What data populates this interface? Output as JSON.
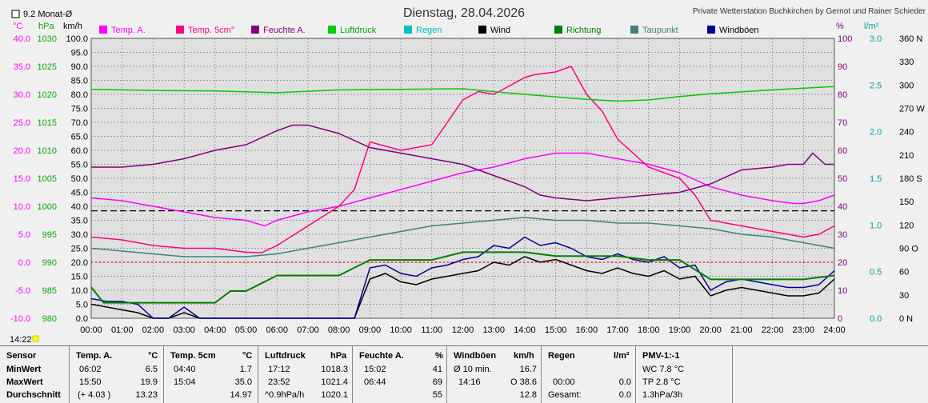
{
  "header": {
    "date": "Dienstag, 28.04.2026",
    "station": "Private Wetterstation Buchkirchen by Gernot und Rainer Schieder",
    "month_avg_label": "9.2 Monat-Ø",
    "time_marker": "14:22"
  },
  "colors": {
    "temp_a": "#ff00ff",
    "temp_5cm": "#ff0080",
    "feuchte": "#800080",
    "luftdruck": "#00cc00",
    "regen": "#00c0c0",
    "wind": "#000000",
    "richtung": "#008000",
    "taupunkt": "#408080",
    "windboeen": "#000099"
  },
  "chart_data": {
    "type": "line",
    "x_ticks": [
      "00:00",
      "01:00",
      "02:00",
      "03:00",
      "04:00",
      "05:00",
      "06:00",
      "07:00",
      "08:00",
      "09:00",
      "10:00",
      "11:00",
      "12:00",
      "13:00",
      "14:00",
      "15:00",
      "16:00",
      "17:00",
      "18:00",
      "19:00",
      "20:00",
      "21:00",
      "22:00",
      "23:00",
      "24:00"
    ],
    "axes": {
      "temp": {
        "unit": "°C",
        "ticks": [
          "40.0",
          "35.0",
          "30.0",
          "25.0",
          "20.0",
          "15.0",
          "10.0",
          "5.0",
          "0.0",
          "-5.0",
          "-10.0"
        ],
        "range": [
          -10,
          40
        ]
      },
      "pressure": {
        "unit": "hPa",
        "ticks": [
          "1030",
          "1025",
          "1020",
          "1015",
          "1010",
          "1005",
          "1000",
          "995",
          "990",
          "985",
          "980"
        ],
        "range": [
          980,
          1030
        ]
      },
      "wind": {
        "unit": "km/h",
        "ticks": [
          "100.0",
          "95.0",
          "90.0",
          "85.0",
          "80.0",
          "75.0",
          "70.0",
          "65.0",
          "60.0",
          "55.0",
          "50.0",
          "45.0",
          "40.0",
          "35.0",
          "30.0",
          "25.0",
          "20.0",
          "15.0",
          "10.0",
          "5.0",
          "0.0"
        ],
        "range": [
          0,
          100
        ]
      },
      "humidity": {
        "unit": "%",
        "ticks": [
          "100",
          "90",
          "80",
          "70",
          "60",
          "50",
          "40",
          "30",
          "20",
          "10",
          "0"
        ],
        "range": [
          0,
          100
        ]
      },
      "rain": {
        "unit": "l/m²",
        "ticks": [
          "3.0",
          "2.5",
          "2.0",
          "1.5",
          "1.0",
          "0.5",
          "0.0"
        ],
        "range": [
          0,
          3
        ]
      },
      "direction": {
        "ticks": [
          "360 N",
          "330",
          "300",
          "270 W",
          "240",
          "210",
          "180 S",
          "150",
          "120",
          "90 O",
          "60",
          "30",
          "0 N"
        ],
        "range": [
          0,
          360
        ]
      }
    },
    "legend": [
      "Temp. A.",
      "Temp. 5cm°",
      "Feuchte A.",
      "Luftdruck",
      "Regen",
      "Wind",
      "Richtung",
      "Taupunkt",
      "Windböen"
    ],
    "series": [
      {
        "name": "Temp. A.",
        "axis": "temp",
        "color": "#ff00ff",
        "x": [
          0,
          1,
          2,
          3,
          4,
          5,
          5.6,
          6,
          7,
          8,
          9,
          10,
          11,
          12,
          13,
          14,
          15,
          16,
          17,
          18,
          19,
          20,
          21,
          22,
          22.7,
          23,
          23.5,
          24
        ],
        "y": [
          11.5,
          11,
          10,
          9,
          8,
          7.5,
          6.5,
          7.5,
          9,
          10,
          11.5,
          13,
          14.5,
          16,
          17,
          18.5,
          19.5,
          19.5,
          18.5,
          17.5,
          16,
          13.5,
          12,
          11,
          10.5,
          10.5,
          11,
          12
        ]
      },
      {
        "name": "Temp. 5cm°",
        "axis": "temp",
        "color": "#ff0080",
        "x": [
          0,
          1,
          2,
          3,
          4,
          5,
          5.5,
          6,
          7,
          8,
          8.5,
          9,
          10,
          11,
          12,
          12.5,
          13,
          14,
          14.3,
          15,
          15.5,
          16,
          16.5,
          17,
          18,
          19,
          19.5,
          20,
          21,
          22,
          23,
          23.5,
          24
        ],
        "y": [
          4.5,
          4,
          3,
          2.5,
          2.5,
          1.8,
          1.7,
          3,
          6.5,
          10,
          13,
          21.5,
          20,
          21,
          29,
          30.5,
          30,
          33,
          33.5,
          34,
          35,
          30,
          27,
          22,
          17,
          15,
          12,
          7.5,
          6.5,
          5.5,
          4.5,
          5,
          6.5
        ]
      },
      {
        "name": "Feuchte A.",
        "axis": "humidity",
        "color": "#800080",
        "x": [
          0,
          1,
          2,
          3,
          4,
          5,
          6,
          6.5,
          7,
          8,
          9,
          10,
          11,
          12,
          13,
          14,
          14.5,
          15,
          16,
          17,
          18,
          19,
          20,
          21,
          22,
          22.5,
          23,
          23.3,
          23.7,
          24
        ],
        "y": [
          54,
          54,
          55,
          57,
          60,
          62,
          67,
          69,
          69,
          66,
          61,
          59,
          57,
          55,
          51,
          47,
          44,
          43,
          42,
          43,
          44,
          45,
          48,
          53,
          54,
          55,
          55,
          59,
          55,
          55
        ]
      },
      {
        "name": "Luftdruck",
        "axis": "pressure",
        "color": "#00cc00",
        "x": [
          0,
          2,
          4,
          6,
          8,
          10,
          12,
          14,
          16,
          17,
          18,
          19,
          20,
          22,
          24
        ],
        "y": [
          1020.9,
          1020.7,
          1020.6,
          1020.3,
          1020.8,
          1020.9,
          1021,
          1020,
          1019.1,
          1018.8,
          1019,
          1019.6,
          1020.1,
          1020.8,
          1021.4
        ]
      },
      {
        "name": "Taupunkt",
        "axis": "temp",
        "color": "#408080",
        "x": [
          0,
          1,
          2,
          3,
          4,
          5,
          6,
          7,
          8,
          9,
          10,
          11,
          12,
          13,
          14,
          15,
          16,
          17,
          18,
          19,
          20,
          21,
          22,
          23,
          24
        ],
        "y": [
          2.5,
          2,
          1.5,
          1,
          1,
          1,
          1.5,
          2.5,
          3.5,
          4.5,
          5.5,
          6.5,
          7,
          7.5,
          8,
          7.5,
          7.5,
          7,
          7,
          6.5,
          6,
          5,
          4.5,
          3.5,
          2.5
        ]
      },
      {
        "name": "Wind",
        "axis": "wind",
        "color": "#000000",
        "x": [
          0,
          0.5,
          1,
          1.5,
          2,
          2.5,
          3,
          3.5,
          4,
          4.5,
          5,
          5.5,
          6,
          6.5,
          7,
          7.5,
          8,
          8.5,
          9,
          9.5,
          10,
          10.5,
          11,
          11.5,
          12,
          12.5,
          13,
          13.5,
          14,
          14.5,
          15,
          15.5,
          16,
          16.5,
          17,
          17.5,
          18,
          18.5,
          19,
          19.5,
          20,
          20.5,
          21,
          21.5,
          22,
          22.5,
          23,
          23.5,
          24
        ],
        "y": [
          5,
          4,
          3,
          2,
          0,
          0,
          2,
          0,
          0,
          0,
          0,
          0,
          0,
          0,
          0,
          0,
          0,
          0,
          14,
          16,
          13,
          12,
          14,
          15,
          16,
          17,
          20,
          19,
          22,
          20,
          21,
          19,
          17,
          16,
          18,
          16,
          15,
          17,
          14,
          15,
          8,
          10,
          11,
          10,
          9,
          8,
          8,
          9,
          14
        ]
      },
      {
        "name": "Windböen",
        "axis": "wind",
        "color": "#000099",
        "x": [
          0,
          0.5,
          1,
          1.5,
          2,
          2.5,
          3,
          3.5,
          4,
          4.5,
          5,
          5.5,
          6,
          6.5,
          7,
          7.5,
          8,
          8.5,
          9,
          9.5,
          10,
          10.5,
          11,
          11.5,
          12,
          12.5,
          13,
          13.5,
          14,
          14.5,
          15,
          15.5,
          16,
          16.5,
          17,
          17.5,
          18,
          18.5,
          19,
          19.5,
          20,
          20.5,
          21,
          21.5,
          22,
          22.5,
          23,
          23.5,
          24
        ],
        "y": [
          7,
          6,
          6,
          5,
          0,
          0,
          4,
          0,
          0,
          0,
          0,
          0,
          0,
          0,
          0,
          0,
          0,
          0,
          18,
          19,
          16,
          15,
          18,
          19,
          21,
          22,
          26,
          25,
          29,
          26,
          27,
          25,
          22,
          21,
          23,
          21,
          20,
          22,
          18,
          19,
          10,
          13,
          14,
          13,
          12,
          11,
          11,
          12,
          17
        ]
      },
      {
        "name": "Richtung",
        "axis": "direction",
        "color": "#008000",
        "x": [
          0,
          0.2,
          0.4,
          1,
          2,
          3,
          4,
          4.5,
          5,
          5.5,
          6,
          6.5,
          7,
          8,
          9,
          10,
          11,
          12,
          13,
          14,
          15,
          16,
          17,
          18,
          19,
          20,
          21,
          22,
          23,
          24
        ],
        "y": [
          40,
          30,
          20,
          20,
          20,
          20,
          20,
          35,
          35,
          45,
          55,
          55,
          55,
          55,
          75,
          75,
          75,
          85,
          85,
          85,
          80,
          80,
          80,
          75,
          75,
          50,
          50,
          50,
          50,
          55
        ]
      }
    ],
    "reference_lines": [
      {
        "axis": "temp",
        "value": 9.2,
        "style": "dashed",
        "color": "#000000"
      },
      {
        "axis": "temp",
        "value": 0,
        "style": "dotted",
        "color": "#ff0000"
      }
    ]
  },
  "stats": {
    "sensor": {
      "title": "Sensor",
      "rows": [
        "MinWert",
        "MaxWert",
        "Durchschnitt"
      ]
    },
    "temp_a": {
      "title": "Temp. A.",
      "unit": "°C",
      "time": [
        "06:02",
        "15:50",
        "(+ 4.03 )"
      ],
      "value": [
        "6.5",
        "19.9",
        "13.23"
      ]
    },
    "temp_5cm": {
      "title": "Temp. 5cm",
      "unit": "°C",
      "time": [
        "04:40",
        "15:04",
        ""
      ],
      "value": [
        "1.7",
        "35.0",
        "14.97"
      ]
    },
    "luftdruck": {
      "title": "Luftdruck",
      "unit": "hPa",
      "time": [
        "17:12",
        "23:52",
        "^0.9hPa/h"
      ],
      "value": [
        "1018.3",
        "1021.4",
        "1020.1"
      ]
    },
    "feuchte": {
      "title": "Feuchte A.",
      "unit": "%",
      "time": [
        "15:02",
        "06:44",
        ""
      ],
      "value": [
        "41",
        "69",
        "55"
      ]
    },
    "windboeen": {
      "title": "Windböen",
      "unit": "km/h",
      "time": [
        "Ø 10 min.",
        "14:16",
        ""
      ],
      "value": [
        "16.7",
        "O 38.6",
        "12.8"
      ]
    },
    "regen": {
      "title": "Regen",
      "unit": "l/m²",
      "time": [
        "",
        "00:00",
        "Gesamt:"
      ],
      "value": [
        "",
        "0.0",
        "0.0"
      ]
    },
    "pmv": {
      "title": "PMV-1:-1",
      "rows": [
        "WC 7.8 °C",
        "TP 2.8 °C",
        "1.3hPa/3h"
      ]
    }
  }
}
